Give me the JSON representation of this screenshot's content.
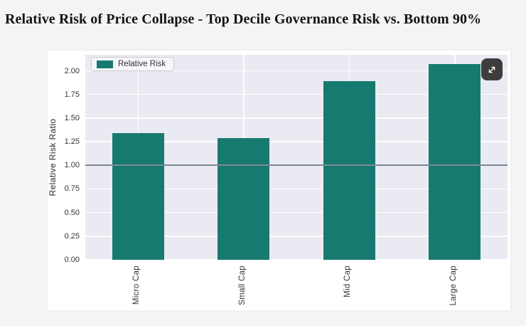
{
  "page": {
    "title": "Relative Risk of Price Collapse - Top Decile Governance Risk vs. Bottom 90%"
  },
  "legend": {
    "label": "Relative Risk"
  },
  "colors": {
    "bar_teal": "#177a70",
    "plot_background": "#eaeaf2",
    "grid_white": "#ffffff",
    "reference_line_gray": "#7e8994",
    "page_background": "#f4f4f4",
    "card_background": "#ffffff",
    "expand_button_background": "#3d3d3d",
    "title_text": "#141414",
    "axis_text": "#333333"
  },
  "chart_data": {
    "type": "bar",
    "title": "Relative Risk of Price Collapse - Top Decile Governance Risk vs. Bottom 90%",
    "categories": [
      "Micro Cap",
      "Small Cap",
      "Mid Cap",
      "Large Cap"
    ],
    "series": [
      {
        "name": "Relative Risk",
        "values": [
          1.34,
          1.29,
          1.89,
          2.07
        ]
      }
    ],
    "xlabel": "",
    "ylabel": "Relative Risk Ratio",
    "ylim": [
      0,
      2.17
    ],
    "y_ticks": [
      0,
      0.25,
      0.5,
      0.75,
      1,
      1.25,
      1.5,
      1.75,
      2
    ],
    "y_tick_labels": [
      "0.00",
      "0.25",
      "0.50",
      "0.75",
      "1.00",
      "1.25",
      "1.50",
      "1.75",
      "2.00"
    ],
    "reference_line": 1.0,
    "grid": true,
    "legend_position": "upper left"
  }
}
